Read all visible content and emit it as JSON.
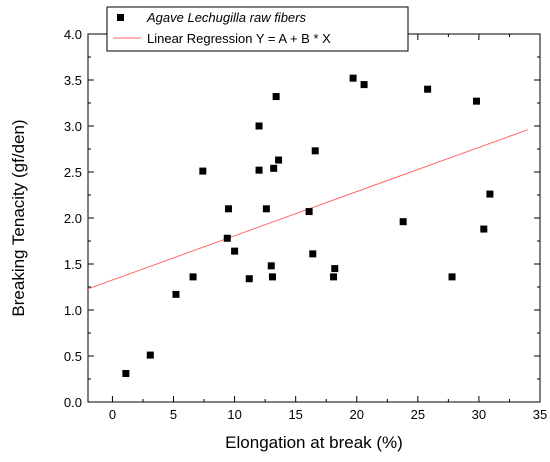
{
  "chart_data": {
    "type": "scatter",
    "xlabel": "Elongation at break (%)",
    "ylabel": "Breaking Tenacity (gf/den)",
    "xlim": [
      -2,
      35
    ],
    "ylim": [
      0.0,
      4.0
    ],
    "x_ticks": [
      "0",
      "5",
      "10",
      "15",
      "20",
      "25",
      "30",
      "35"
    ],
    "y_ticks": [
      "0.0",
      "0.5",
      "1.0",
      "1.5",
      "2.0",
      "2.5",
      "3.0",
      "3.5",
      "4.0"
    ],
    "x_tick_values": [
      0,
      5,
      10,
      15,
      20,
      25,
      30,
      35
    ],
    "y_tick_values": [
      0.0,
      0.5,
      1.0,
      1.5,
      2.0,
      2.5,
      3.0,
      3.5,
      4.0
    ],
    "legend": {
      "position": "top-left",
      "entries": [
        {
          "label": "Agave Lechugilla raw fibers",
          "style": "square-marker"
        },
        {
          "label": "Linear Regression Y = A + B * X",
          "style": "line"
        }
      ]
    },
    "series": [
      {
        "name": "Agave Lechugilla raw fibers",
        "kind": "scatter",
        "color": "#000000",
        "points": [
          [
            1.1,
            0.31
          ],
          [
            3.1,
            0.51
          ],
          [
            5.2,
            1.17
          ],
          [
            6.6,
            1.36
          ],
          [
            7.4,
            2.51
          ],
          [
            9.4,
            1.78
          ],
          [
            9.5,
            2.1
          ],
          [
            10.0,
            1.64
          ],
          [
            11.2,
            1.34
          ],
          [
            12.0,
            2.52
          ],
          [
            12.0,
            3.0
          ],
          [
            12.6,
            2.1
          ],
          [
            13.0,
            1.48
          ],
          [
            13.1,
            1.36
          ],
          [
            13.2,
            2.54
          ],
          [
            13.4,
            3.32
          ],
          [
            13.6,
            2.63
          ],
          [
            16.1,
            2.07
          ],
          [
            16.4,
            1.61
          ],
          [
            16.6,
            2.73
          ],
          [
            18.1,
            1.36
          ],
          [
            18.2,
            1.45
          ],
          [
            19.7,
            3.52
          ],
          [
            20.6,
            3.45
          ],
          [
            23.8,
            1.96
          ],
          [
            25.8,
            3.4
          ],
          [
            27.8,
            1.36
          ],
          [
            29.8,
            3.27
          ],
          [
            30.4,
            1.88
          ],
          [
            30.9,
            2.26
          ]
        ]
      },
      {
        "name": "Linear Regression Y = A + B * X",
        "kind": "line",
        "color": "#ff6666",
        "x": [
          -2,
          34
        ],
        "y": [
          1.23,
          2.96
        ]
      }
    ],
    "grid": false
  }
}
